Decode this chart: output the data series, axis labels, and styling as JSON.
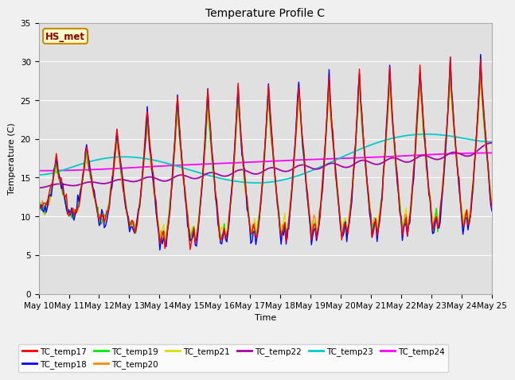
{
  "title": "Temperature Profile C",
  "xlabel": "Time",
  "ylabel": "Temperature (C)",
  "ylim": [
    0,
    35
  ],
  "annotation": "HS_met",
  "x_tick_labels": [
    "May 10",
    "May 11",
    "May 12",
    "May 13",
    "May 14",
    "May 15",
    "May 16",
    "May 17",
    "May 18",
    "May 19",
    "May 20",
    "May 21",
    "May 22",
    "May 23",
    "May 24",
    "May 25"
  ],
  "series_colors": {
    "TC_temp17": "#ff0000",
    "TC_temp18": "#0000ff",
    "TC_temp19": "#00ee00",
    "TC_temp20": "#ff8800",
    "TC_temp21": "#dddd00",
    "TC_temp22": "#aa00aa",
    "TC_temp23": "#00cccc",
    "TC_temp24": "#ff00ff"
  },
  "figsize": [
    6.4,
    4.8
  ],
  "dpi": 100
}
